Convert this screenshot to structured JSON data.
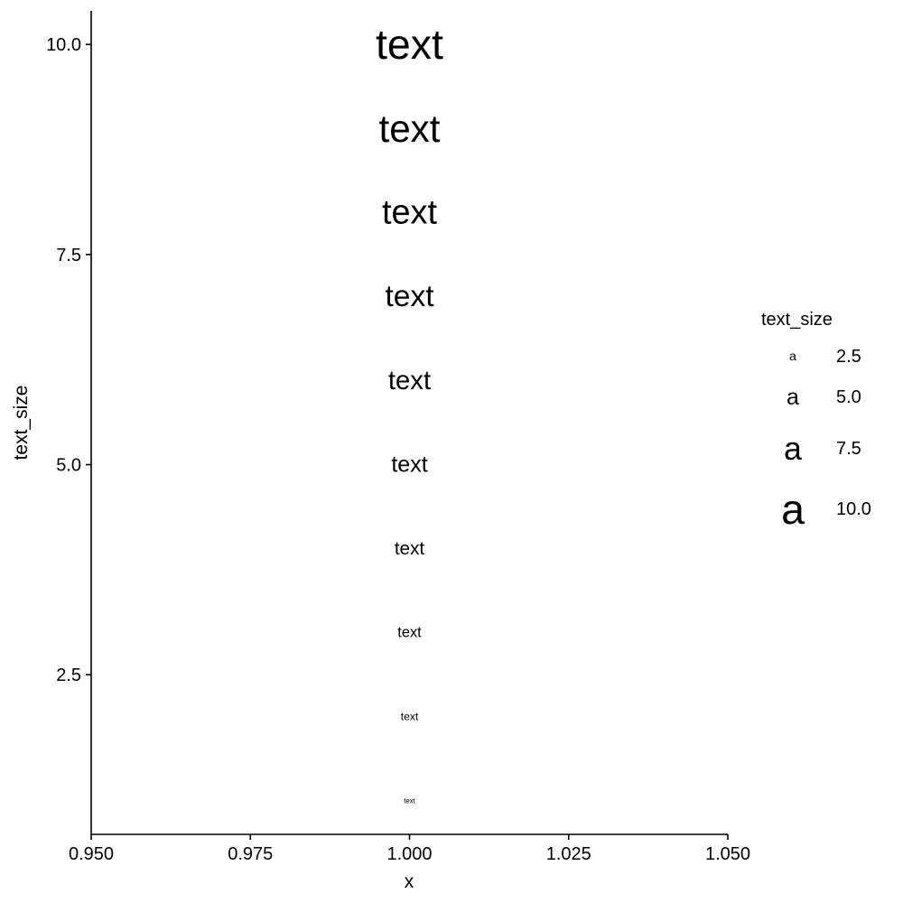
{
  "chart_data": {
    "type": "scatter",
    "geom": "text",
    "xlabel": "x",
    "ylabel": "text_size",
    "xlim": [
      0.95,
      1.05
    ],
    "ylim": [
      0.6,
      10.4
    ],
    "x_ticks": [
      "0.950",
      "0.975",
      "1.000",
      "1.025",
      "1.050"
    ],
    "y_ticks": [
      "2.5",
      "5.0",
      "7.5",
      "10.0"
    ],
    "points": [
      {
        "x": 1.0,
        "y": 1,
        "label": "text",
        "text_size": 1
      },
      {
        "x": 1.0,
        "y": 2,
        "label": "text",
        "text_size": 2
      },
      {
        "x": 1.0,
        "y": 3,
        "label": "text",
        "text_size": 3
      },
      {
        "x": 1.0,
        "y": 4,
        "label": "text",
        "text_size": 4
      },
      {
        "x": 1.0,
        "y": 5,
        "label": "text",
        "text_size": 5
      },
      {
        "x": 1.0,
        "y": 6,
        "label": "text",
        "text_size": 6
      },
      {
        "x": 1.0,
        "y": 7,
        "label": "text",
        "text_size": 7
      },
      {
        "x": 1.0,
        "y": 8,
        "label": "text",
        "text_size": 8
      },
      {
        "x": 1.0,
        "y": 9,
        "label": "text",
        "text_size": 9
      },
      {
        "x": 1.0,
        "y": 10,
        "label": "text",
        "text_size": 10
      }
    ],
    "grid": false,
    "legend": {
      "title": "text_size",
      "position": "right",
      "key_glyph": "a",
      "entries": [
        {
          "label": "2.5",
          "value": 2.5
        },
        {
          "label": "5.0",
          "value": 5.0
        },
        {
          "label": "7.5",
          "value": 7.5
        },
        {
          "label": "10.0",
          "value": 10.0
        }
      ]
    }
  }
}
